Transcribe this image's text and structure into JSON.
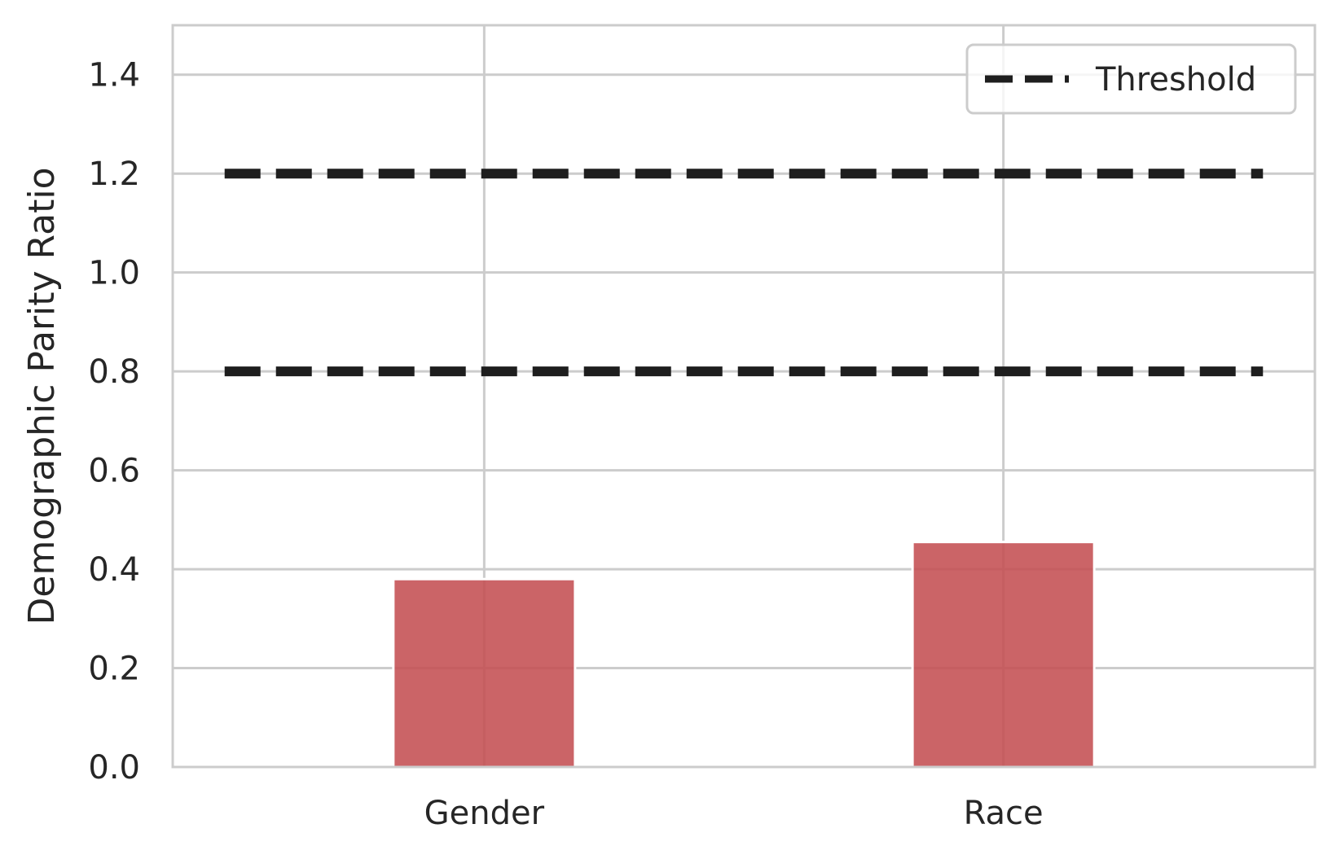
{
  "chart_data": {
    "type": "bar",
    "title": "",
    "xlabel": "",
    "ylabel": "Demographic Parity Ratio",
    "categories": [
      "Gender",
      "Race"
    ],
    "values": [
      0.38,
      0.455
    ],
    "ylim": [
      0,
      1.5
    ],
    "yticks": [
      "0.0",
      "0.2",
      "0.4",
      "0.6",
      "0.8",
      "1.0",
      "1.2",
      "1.4"
    ],
    "ytick_values": [
      0.0,
      0.2,
      0.4,
      0.6,
      0.8,
      1.0,
      1.2,
      1.4
    ],
    "bar_color": "#c44e52",
    "threshold_lines": [
      {
        "name": "Threshold",
        "y": 0.8
      },
      {
        "name": "Threshold",
        "y": 1.2
      }
    ],
    "threshold_color": "#1e1e1e",
    "legend": {
      "entries": [
        "Threshold"
      ],
      "placement": "top-right"
    },
    "grid": true,
    "grid_color": "#cccccc",
    "spine_color": "#cccccc"
  }
}
